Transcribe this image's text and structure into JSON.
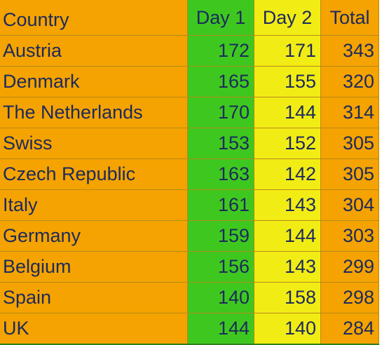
{
  "table": {
    "headers": {
      "country": "Country",
      "day1": "Day 1",
      "day2": "Day 2",
      "total": "Total"
    },
    "rows": [
      {
        "country": "Austria",
        "day1": "172",
        "day2": "171",
        "total": "343"
      },
      {
        "country": "Denmark",
        "day1": "165",
        "day2": "155",
        "total": "320"
      },
      {
        "country": "The Netherlands",
        "day1": "170",
        "day2": "144",
        "total": "314"
      },
      {
        "country": "Swiss",
        "day1": "153",
        "day2": "152",
        "total": "305"
      },
      {
        "country": "Czech Republic",
        "day1": "163",
        "day2": "142",
        "total": "305"
      },
      {
        "country": "Italy",
        "day1": "161",
        "day2": "143",
        "total": "304"
      },
      {
        "country": "Germany",
        "day1": "159",
        "day2": "144",
        "total": "303"
      },
      {
        "country": "Belgium",
        "day1": "156",
        "day2": "143",
        "total": "299"
      },
      {
        "country": "Spain",
        "day1": "140",
        "day2": "158",
        "total": "298"
      },
      {
        "country": "UK",
        "day1": "144",
        "day2": "140",
        "total": "284"
      }
    ]
  },
  "colors": {
    "country_column": "#f5a300",
    "day1_column": "#3ec81f",
    "day2_column": "#f2ec15",
    "total_column": "#f5a300",
    "text": "#1c2a5c"
  }
}
